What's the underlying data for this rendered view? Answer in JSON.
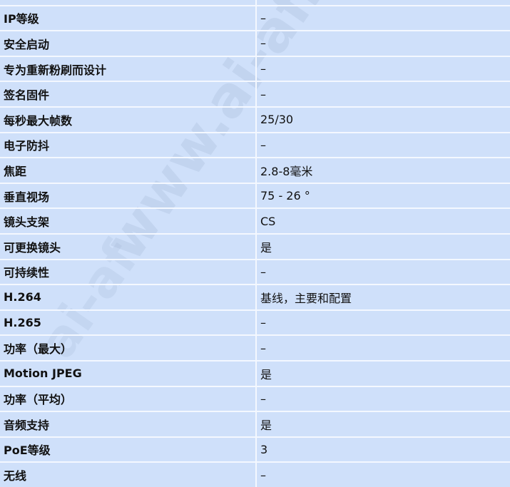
{
  "watermark": "www.ai-af.cn",
  "rows": [
    {
      "label": "",
      "value": ""
    },
    {
      "label": "IP等级",
      "value": "–"
    },
    {
      "label": "安全启动",
      "value": "–"
    },
    {
      "label": "专为重新粉刷而设计",
      "value": "–"
    },
    {
      "label": "签名固件",
      "value": "–"
    },
    {
      "label": "每秒最大帧数",
      "value": "25/30"
    },
    {
      "label": "电子防抖",
      "value": "–"
    },
    {
      "label": "焦距",
      "value": "2.8-8毫米"
    },
    {
      "label": "垂直视场",
      "value": "75 - 26 °"
    },
    {
      "label": "镜头支架",
      "value": "CS"
    },
    {
      "label": "可更换镜头",
      "value": "是"
    },
    {
      "label": "可持续性",
      "value": "–"
    },
    {
      "label": "H.264",
      "value": "基线，主要和配置"
    },
    {
      "label": "H.265",
      "value": "–"
    },
    {
      "label": "功率（最大）",
      "value": "–"
    },
    {
      "label": "Motion JPEG",
      "value": "是"
    },
    {
      "label": "功率（平均）",
      "value": "–"
    },
    {
      "label": "音频支持",
      "value": "是"
    },
    {
      "label": "PoE等级",
      "value": "3"
    },
    {
      "label": "无线",
      "value": "–"
    }
  ]
}
